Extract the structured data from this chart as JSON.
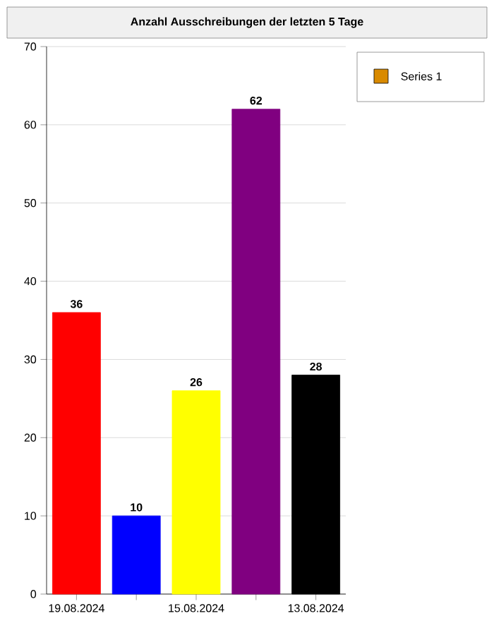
{
  "chart_data": {
    "type": "bar",
    "title": "Anzahl Ausschreibungen der letzten 5 Tage",
    "categories": [
      "19.08.2024",
      null,
      "15.08.2024",
      null,
      "13.08.2024"
    ],
    "series": [
      {
        "name": "Series 1",
        "color": "#d98a00",
        "colors": [
          "#ff0000",
          "#0000ff",
          "#ffff00",
          "#800080",
          "#000000"
        ],
        "values": [
          36,
          10,
          26,
          62,
          28
        ]
      }
    ],
    "ylim": [
      0,
      70
    ],
    "yticks": [
      0,
      10,
      20,
      30,
      40,
      50,
      60,
      70
    ],
    "grid": "y",
    "legend": "right",
    "data_labels": true
  }
}
